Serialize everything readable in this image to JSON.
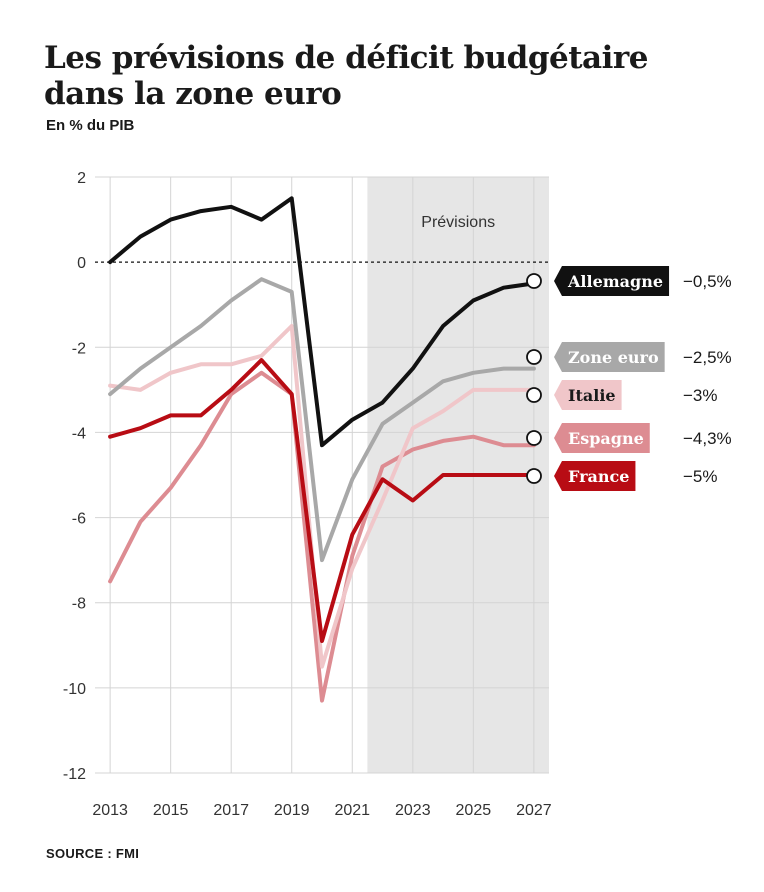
{
  "title": "Les prévisions de déficit budgétaire dans la zone euro",
  "subtitle": "En % du PIB",
  "source": "SOURCE : FMI",
  "chart_data": {
    "type": "line",
    "x_ticks": [
      "2013",
      "2015",
      "2017",
      "2019",
      "2021",
      "2023",
      "2025",
      "2027"
    ],
    "y_ticks": [
      "2",
      "0",
      "-2",
      "-4",
      "-6",
      "-8",
      "-10",
      "-12"
    ],
    "ylim": [
      -12,
      2
    ],
    "xlim": [
      2012.5,
      2027.5
    ],
    "grid": true,
    "forecast_region": {
      "from": 2021.5,
      "to": 2027.5,
      "label": "Prévisions",
      "color": "#e6e6e6"
    },
    "zero_line": "dotted",
    "x": [
      2013,
      2014,
      2015,
      2016,
      2017,
      2018,
      2019,
      2020,
      2021,
      2022,
      2023,
      2024,
      2025,
      2026,
      2027
    ],
    "series": [
      {
        "name": "Espagne",
        "end_label": "−4,3%",
        "color": "#dd8c92",
        "text_color": "#ffffff",
        "values": [
          -7.5,
          -6.1,
          -5.3,
          -4.3,
          -3.1,
          -2.6,
          -3.1,
          -10.3,
          -6.9,
          -4.8,
          -4.4,
          -4.2,
          -4.1,
          -4.3,
          -4.3
        ]
      },
      {
        "name": "Italie",
        "end_label": "−3%",
        "color": "#f0c6c9",
        "text_color": "#1a1a1a",
        "values": [
          -2.9,
          -3.0,
          -2.6,
          -2.4,
          -2.4,
          -2.2,
          -1.5,
          -9.5,
          -7.2,
          -5.6,
          -3.9,
          -3.5,
          -3.0,
          -3.0,
          -3.0
        ]
      },
      {
        "name": "Zone euro",
        "end_label": "−2,5%",
        "color": "#a8a8a8",
        "text_color": "#ffffff",
        "values": [
          -3.1,
          -2.5,
          -2.0,
          -1.5,
          -0.9,
          -0.4,
          -0.7,
          -7.0,
          -5.1,
          -3.8,
          -3.3,
          -2.8,
          -2.6,
          -2.5,
          -2.5
        ]
      },
      {
        "name": "France",
        "end_label": "−5%",
        "color": "#b80c14",
        "text_color": "#ffffff",
        "values": [
          -4.1,
          -3.9,
          -3.6,
          -3.6,
          -3.0,
          -2.3,
          -3.1,
          -8.9,
          -6.4,
          -5.1,
          -5.6,
          -5.0,
          -5.0,
          -5.0,
          -5.0
        ]
      },
      {
        "name": "Allemagne",
        "end_label": "−0,5%",
        "color": "#111111",
        "text_color": "#ffffff",
        "values": [
          0.0,
          0.6,
          1.0,
          1.2,
          1.3,
          1.0,
          1.5,
          -4.3,
          -3.7,
          -3.3,
          -2.5,
          -1.5,
          -0.9,
          -0.6,
          -0.5
        ]
      }
    ]
  }
}
